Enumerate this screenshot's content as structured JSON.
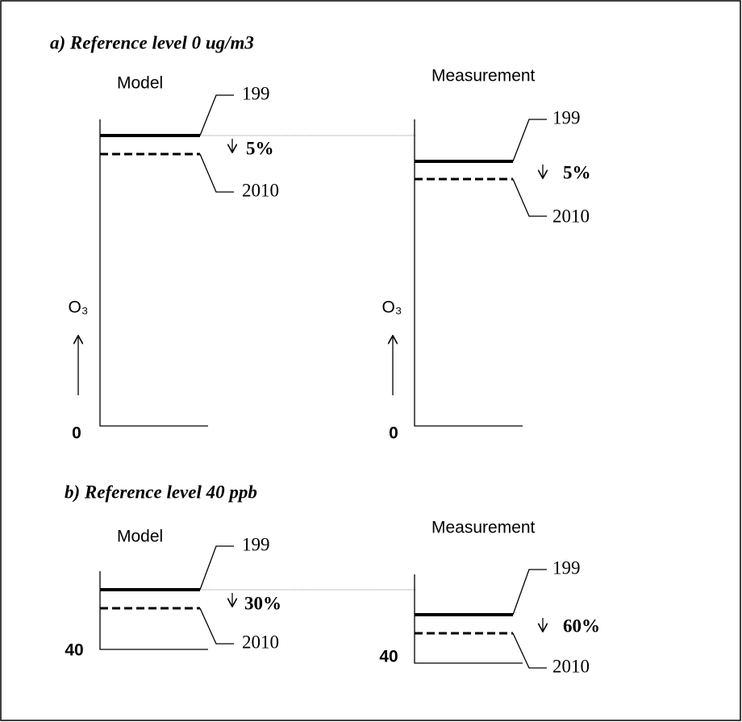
{
  "panels": [
    {
      "title": "a) Reference level 0 ug/m3",
      "model": {
        "label": "Model",
        "upper": "199",
        "lower": "2010",
        "change": "5%",
        "axis": "O₃",
        "origin": "0"
      },
      "measurement": {
        "label": "Measurement",
        "upper": "199",
        "lower": "2010",
        "change": "5%",
        "axis": "O₃",
        "origin": "0"
      }
    },
    {
      "title": "b) Reference level 40 ppb",
      "model": {
        "label": "Model",
        "upper": "199",
        "lower": "2010",
        "change": "30%",
        "origin": "40"
      },
      "measurement": {
        "label": "Measurement",
        "upper": "199",
        "lower": "2010",
        "change": "60%",
        "origin": "40"
      }
    }
  ]
}
